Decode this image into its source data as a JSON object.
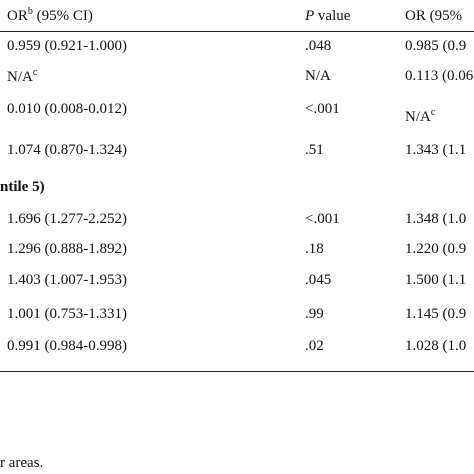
{
  "header": {
    "col1_label": "OR",
    "col1_sup": "b",
    "col1_suffix": " (95% CI)",
    "col2_italic": "P",
    "col2_suffix": " value",
    "col3_label": "OR (95% "
  },
  "rows": [
    {
      "c1": "0.959 (0.921-1.000)",
      "c2": ".048",
      "c3": "0.985 (0.9"
    },
    {
      "c1": "N/A",
      "c1_sup": "c",
      "c2": "N/A",
      "c3": "0.113 (0.06"
    },
    {
      "c1": "0.010 (0.008-0.012)",
      "c2": "<.001",
      "c3": "N/A",
      "c3_sup": "c"
    },
    {
      "c1": "1.074 (0.870-1.324)",
      "c2": ".51",
      "c3": "1.343 (1.1"
    },
    {
      "section": "ntile 5)"
    },
    {
      "c1": "1.696 (1.277-2.252)",
      "c2": "<.001",
      "c3": "1.348 (1.0"
    },
    {
      "c1": "1.296 (0.888-1.892)",
      "c2": ".18",
      "c3": "1.220 (0.9"
    },
    {
      "c1": "1.403 (1.007-1.953)",
      "c2": ".045",
      "c3": "1.500 (1.1"
    },
    {
      "c1": "1.001 (0.753-1.331)",
      "c2": ".99",
      "c3": "1.145 (0.9"
    },
    {
      "c1": "0.991 (0.984-0.998)",
      "c2": ".02",
      "c3": "1.028 (1.0"
    }
  ],
  "footnote": "r areas."
}
